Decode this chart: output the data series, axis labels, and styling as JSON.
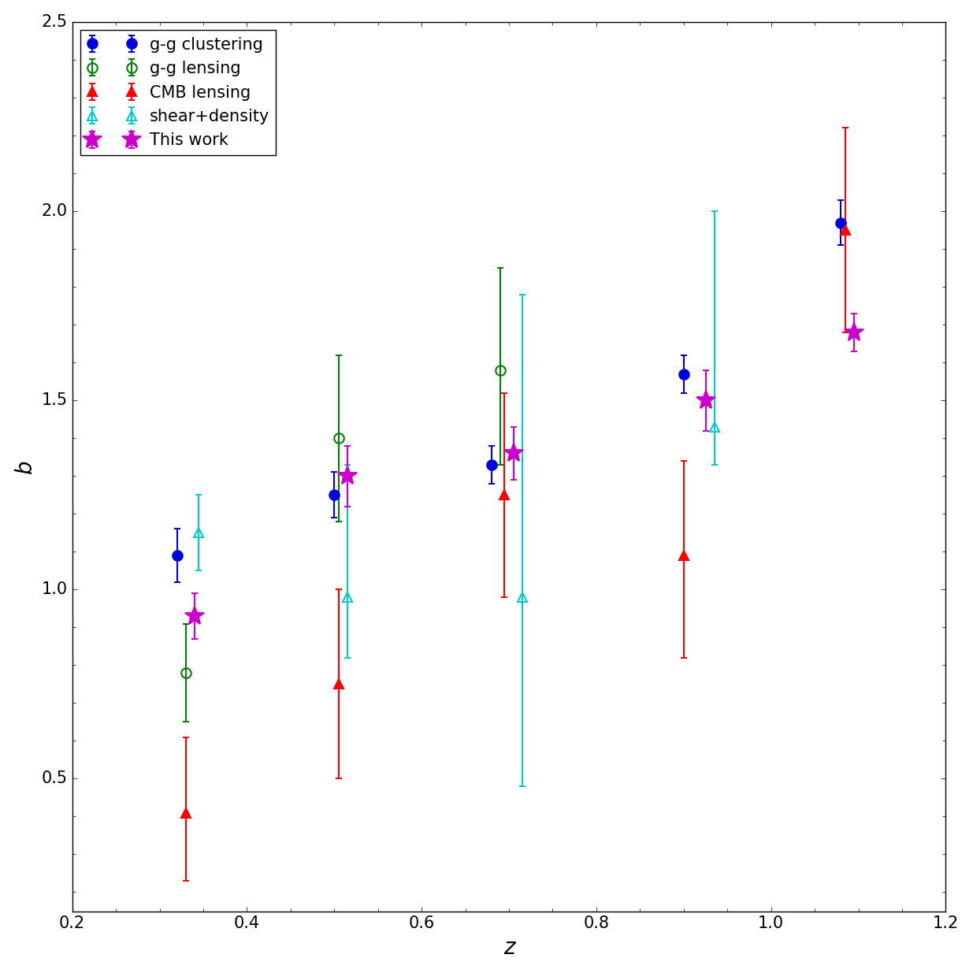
{
  "title": "",
  "xlabel": "z",
  "ylabel": "b",
  "xlim": [
    0.2,
    1.2
  ],
  "ylim": [
    0.15,
    2.5
  ],
  "series": {
    "gg_clustering": {
      "label": "g-g clustering",
      "color": "#0000dd",
      "marker": "o",
      "fillstyle": "full",
      "markersize": 9,
      "x": [
        0.32,
        0.5,
        0.68,
        0.9,
        1.08
      ],
      "y": [
        1.09,
        1.25,
        1.33,
        1.57,
        1.97
      ],
      "yerr_lo": [
        0.07,
        0.06,
        0.05,
        0.05,
        0.06
      ],
      "yerr_hi": [
        0.07,
        0.06,
        0.05,
        0.05,
        0.06
      ]
    },
    "gg_lensing": {
      "label": "g-g lensing",
      "color": "#008000",
      "marker": "o",
      "fillstyle": "none",
      "markersize": 9,
      "x": [
        0.33,
        0.505,
        0.69
      ],
      "y": [
        0.78,
        1.4,
        1.58
      ],
      "yerr_lo": [
        0.13,
        0.22,
        0.25
      ],
      "yerr_hi": [
        0.13,
        0.22,
        0.27
      ]
    },
    "cmb_lensing": {
      "label": "CMB lensing",
      "color": "#ff0000",
      "marker": "^",
      "fillstyle": "full",
      "markersize": 9,
      "x": [
        0.33,
        0.505,
        0.695,
        0.9,
        1.085
      ],
      "y": [
        0.41,
        0.75,
        1.25,
        1.09,
        1.95
      ],
      "yerr_lo": [
        0.18,
        0.25,
        0.27,
        0.27,
        0.27
      ],
      "yerr_hi": [
        0.2,
        0.25,
        0.27,
        0.25,
        0.27
      ]
    },
    "shear_density": {
      "label": "shear+density",
      "color": "#00cccc",
      "marker": "^",
      "fillstyle": "none",
      "markersize": 9,
      "x": [
        0.345,
        0.515,
        0.715,
        0.935
      ],
      "y": [
        1.15,
        0.98,
        0.98,
        1.43
      ],
      "yerr_lo": [
        0.1,
        0.16,
        0.5,
        0.1
      ],
      "yerr_hi": [
        0.1,
        0.35,
        0.8,
        0.57
      ]
    },
    "this_work": {
      "label": "This work",
      "color": "#cc00cc",
      "marker": "*",
      "fillstyle": "full",
      "markersize": 18,
      "x": [
        0.34,
        0.515,
        0.705,
        0.925,
        1.095
      ],
      "y": [
        0.93,
        1.3,
        1.36,
        1.5,
        1.68
      ],
      "yerr_lo": [
        0.06,
        0.08,
        0.07,
        0.08,
        0.05
      ],
      "yerr_hi": [
        0.06,
        0.08,
        0.07,
        0.08,
        0.05
      ]
    }
  },
  "legend_loc": "upper left",
  "fontsize_axis_label": 20,
  "fontsize_tick": 15,
  "fontsize_legend": 15
}
